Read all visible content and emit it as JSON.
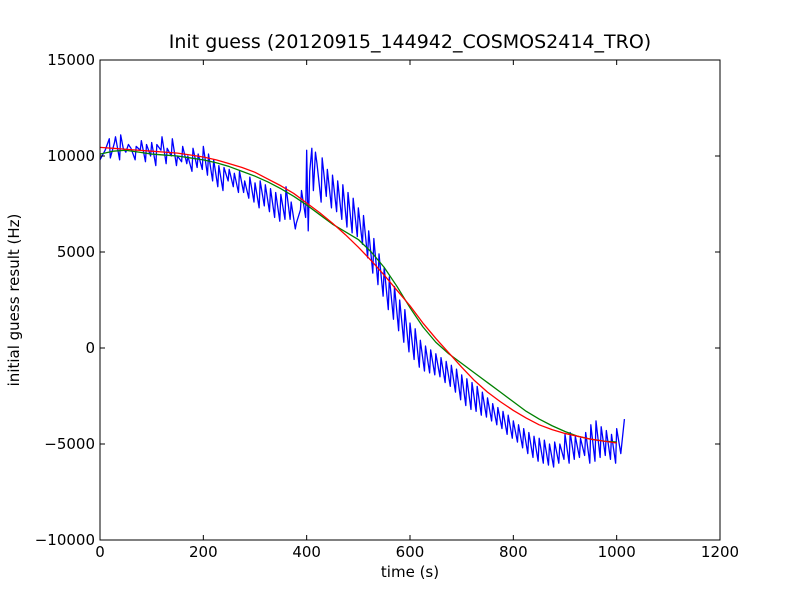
{
  "chart_data": {
    "type": "line",
    "title": "Init guess (20120915_144942_COSMOS2414_TRO)",
    "xlabel": "time (s)",
    "ylabel": "initial guess result (Hz)",
    "xlim": [
      0,
      1200
    ],
    "ylim": [
      -10000,
      15000
    ],
    "xticks": [
      0,
      200,
      400,
      600,
      800,
      1000,
      1200
    ],
    "yticks": [
      -10000,
      -5000,
      0,
      5000,
      10000,
      15000
    ],
    "xtick_labels": [
      "0",
      "200",
      "400",
      "600",
      "800",
      "1000",
      "1200"
    ],
    "ytick_labels": [
      "−10000",
      "−5000",
      "0",
      "5000",
      "10000",
      "15000"
    ],
    "grid": false,
    "legend": "none",
    "series": [
      {
        "color": "#0000ff",
        "x": [
          0,
          10,
          18,
          20,
          28,
          30,
          38,
          40,
          45,
          50,
          55,
          60,
          68,
          70,
          78,
          80,
          88,
          90,
          98,
          100,
          108,
          110,
          118,
          120,
          128,
          130,
          138,
          140,
          148,
          150,
          158,
          160,
          168,
          170,
          178,
          180,
          188,
          190,
          198,
          200,
          208,
          210,
          218,
          220,
          228,
          230,
          238,
          240,
          248,
          250,
          258,
          260,
          268,
          270,
          278,
          280,
          288,
          290,
          298,
          300,
          308,
          310,
          318,
          320,
          328,
          330,
          338,
          340,
          348,
          350,
          358,
          360,
          368,
          370,
          378,
          380,
          388,
          390,
          398,
          400,
          403,
          406,
          410,
          413,
          417,
          420,
          428,
          430,
          438,
          440,
          448,
          450,
          458,
          460,
          468,
          470,
          478,
          480,
          488,
          490,
          498,
          500,
          508,
          510,
          518,
          520,
          528,
          530,
          538,
          540,
          548,
          550,
          558,
          560,
          568,
          570,
          578,
          580,
          588,
          590,
          598,
          600,
          608,
          610,
          618,
          620,
          628,
          630,
          638,
          640,
          648,
          650,
          658,
          660,
          668,
          670,
          678,
          680,
          688,
          690,
          698,
          700,
          708,
          710,
          718,
          720,
          728,
          730,
          738,
          740,
          748,
          750,
          758,
          760,
          768,
          770,
          778,
          780,
          788,
          790,
          798,
          800,
          808,
          810,
          818,
          820,
          828,
          830,
          838,
          840,
          848,
          850,
          858,
          860,
          868,
          870,
          878,
          880,
          888,
          890,
          898,
          900,
          908,
          910,
          918,
          920,
          928,
          930,
          938,
          940,
          948,
          950,
          958,
          960,
          968,
          970,
          978,
          980,
          988,
          990,
          998,
          1000,
          1008,
          1015
        ],
        "y": [
          9800,
          10300,
          10900,
          9900,
          10700,
          11000,
          9800,
          11100,
          10400,
          10200,
          10600,
          10400,
          9800,
          10500,
          10300,
          10800,
          9700,
          10600,
          10000,
          10700,
          9500,
          10600,
          10300,
          11000,
          9600,
          10400,
          10000,
          10900,
          9500,
          10000,
          9700,
          10500,
          9600,
          10000,
          9200,
          10400,
          9400,
          10100,
          9300,
          10500,
          9000,
          10100,
          8700,
          9800,
          8400,
          9500,
          8200,
          9400,
          8700,
          9300,
          8400,
          9100,
          8100,
          9200,
          8100,
          8700,
          7800,
          8900,
          7600,
          8600,
          7300,
          8700,
          7400,
          8500,
          7100,
          8300,
          6800,
          8100,
          6600,
          8000,
          6700,
          8400,
          6700,
          7600,
          6200,
          6500,
          7200,
          8200,
          6800,
          10300,
          6100,
          9200,
          10400,
          8200,
          10200,
          9600,
          7600,
          9900,
          7900,
          9300,
          7300,
          9000,
          7100,
          8700,
          6700,
          8500,
          6300,
          8100,
          6000,
          7800,
          5800,
          7300,
          5400,
          6900,
          4700,
          6100,
          3900,
          5700,
          3300,
          4900,
          2700,
          4200,
          2000,
          3700,
          1500,
          3200,
          900,
          2500,
          300,
          2000,
          -200,
          1300,
          -600,
          1000,
          -1000,
          400,
          -1200,
          100,
          -1300,
          -100,
          -1400,
          -300,
          -1500,
          -500,
          -1800,
          -700,
          -2000,
          -900,
          -2300,
          -1100,
          -2700,
          -1400,
          -3000,
          -1600,
          -3200,
          -1800,
          -3300,
          -2000,
          -3500,
          -2300,
          -3600,
          -2600,
          -3800,
          -2900,
          -4000,
          -3100,
          -4200,
          -3300,
          -4500,
          -3500,
          -4700,
          -3800,
          -4900,
          -4000,
          -5200,
          -4200,
          -5500,
          -4400,
          -5700,
          -4600,
          -5900,
          -4700,
          -6000,
          -4800,
          -6100,
          -5000,
          -6200,
          -4900,
          -6000,
          -5000,
          -5800,
          -4500,
          -6000,
          -4400,
          -5800,
          -4600,
          -5700,
          -4700,
          -5600,
          -4400,
          -6000,
          -4000,
          -5900,
          -3800,
          -5700,
          -4100,
          -5600,
          -4300,
          -5800,
          -4500,
          -6000,
          -4200,
          -5500,
          -3700
        ]
      },
      {
        "color": "#008000",
        "x": [
          0,
          25,
          50,
          75,
          100,
          125,
          150,
          175,
          200,
          225,
          250,
          275,
          300,
          325,
          350,
          375,
          400,
          425,
          450,
          475,
          500,
          525,
          550,
          575,
          600,
          625,
          650,
          675,
          700,
          725,
          750,
          775,
          800,
          825,
          850,
          875,
          900,
          925,
          950,
          975,
          1000
        ],
        "y": [
          10100,
          10250,
          10300,
          10200,
          10100,
          10050,
          10000,
          9900,
          9800,
          9650,
          9450,
          9200,
          8950,
          8650,
          8300,
          7900,
          7450,
          6950,
          6450,
          6050,
          5650,
          5000,
          4200,
          3200,
          2100,
          1100,
          300,
          -300,
          -800,
          -1300,
          -1800,
          -2300,
          -2800,
          -3300,
          -3700,
          -4050,
          -4350,
          -4600,
          -4750,
          -4850,
          -4900
        ]
      },
      {
        "color": "#ff0000",
        "x": [
          0,
          25,
          50,
          75,
          100,
          125,
          150,
          175,
          200,
          225,
          250,
          275,
          300,
          325,
          350,
          375,
          400,
          425,
          450,
          475,
          500,
          525,
          550,
          575,
          600,
          625,
          650,
          675,
          700,
          725,
          750,
          775,
          800,
          825,
          850,
          875,
          900,
          925,
          950,
          975,
          1000
        ],
        "y": [
          10450,
          10400,
          10350,
          10300,
          10250,
          10200,
          10150,
          10050,
          9950,
          9800,
          9600,
          9400,
          9150,
          8800,
          8450,
          8050,
          7550,
          7050,
          6500,
          5900,
          5250,
          4550,
          3800,
          3000,
          2200,
          1300,
          500,
          -250,
          -1000,
          -1700,
          -2300,
          -2800,
          -3250,
          -3650,
          -4000,
          -4250,
          -4450,
          -4600,
          -4750,
          -4850,
          -4950
        ]
      }
    ]
  }
}
